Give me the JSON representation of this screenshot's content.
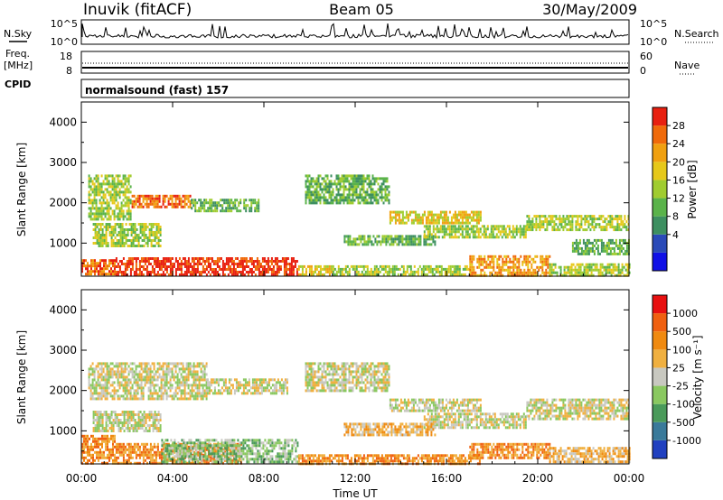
{
  "header": {
    "station": "Inuvik (fitACF)",
    "beam": "Beam 05",
    "date": "30/May/2009"
  },
  "strips": {
    "nsky_label": "N.Sky",
    "nsky_ticks": [
      "10^5",
      "10^0"
    ],
    "nsearch_label": "N.Search",
    "nsearch_ticks": [
      "10^5",
      "10^0"
    ],
    "freq_label": "Freq.",
    "freq_unit": "[MHz]",
    "freq_ticks": [
      "18",
      "8"
    ],
    "nave_label": "Nave",
    "nave_ticks": [
      "60",
      "0"
    ],
    "cpid_label": "CPID",
    "cpid_value": "normalsound (fast) 157"
  },
  "chart_data": [
    {
      "type": "heatmap",
      "panel": "power",
      "xlabel": "Time UT",
      "ylabel": "Slant Range [km]",
      "xlim": [
        0,
        24
      ],
      "x_ticks": [
        "00:00",
        "04:00",
        "08:00",
        "12:00",
        "16:00",
        "20:00",
        "00:00"
      ],
      "ylim": [
        180,
        4500
      ],
      "y_ticks": [
        1000,
        2000,
        3000,
        4000
      ],
      "colorbar": {
        "label": "Power [dB]",
        "ticks": [
          "4",
          "8",
          "12",
          "16",
          "20",
          "24",
          "28"
        ],
        "colors": [
          "#1010e6",
          "#2a4ab8",
          "#3d8f60",
          "#5ab34a",
          "#a0cc30",
          "#e6c81a",
          "#f0a010",
          "#f06a0a",
          "#e82010"
        ]
      },
      "echo_bands": [
        {
          "t0": 0.0,
          "t1": 1.5,
          "r0": 200,
          "r1": 600,
          "level": 7
        },
        {
          "t0": 1.5,
          "t1": 9.5,
          "r0": 200,
          "r1": 650,
          "level": 8
        },
        {
          "t0": 9.5,
          "t1": 11.0,
          "r0": 200,
          "r1": 450,
          "level": 5
        },
        {
          "t0": 11.0,
          "t1": 17.0,
          "r0": 200,
          "r1": 450,
          "level": 4
        },
        {
          "t0": 17.0,
          "t1": 20.5,
          "r0": 200,
          "r1": 700,
          "level": 6
        },
        {
          "t0": 20.5,
          "t1": 24.0,
          "r0": 200,
          "r1": 500,
          "level": 4
        },
        {
          "t0": 0.3,
          "t1": 2.2,
          "r0": 1600,
          "r1": 2700,
          "level": 4
        },
        {
          "t0": 2.2,
          "t1": 4.8,
          "r0": 1900,
          "r1": 2200,
          "level": 7
        },
        {
          "t0": 0.5,
          "t1": 3.5,
          "r0": 900,
          "r1": 1500,
          "level": 4
        },
        {
          "t0": 4.8,
          "t1": 7.8,
          "r0": 1800,
          "r1": 2100,
          "level": 3
        },
        {
          "t0": 9.8,
          "t1": 13.5,
          "r0": 2000,
          "r1": 2700,
          "level": 3
        },
        {
          "t0": 13.5,
          "t1": 17.5,
          "r0": 1500,
          "r1": 1800,
          "level": 5
        },
        {
          "t0": 11.5,
          "t1": 15.5,
          "r0": 950,
          "r1": 1200,
          "level": 3
        },
        {
          "t0": 15.0,
          "t1": 19.5,
          "r0": 1150,
          "r1": 1450,
          "level": 4
        },
        {
          "t0": 19.5,
          "t1": 24.0,
          "r0": 1300,
          "r1": 1700,
          "level": 4
        },
        {
          "t0": 21.5,
          "t1": 24.0,
          "r0": 700,
          "r1": 1100,
          "level": 3
        }
      ]
    },
    {
      "type": "heatmap",
      "panel": "velocity",
      "xlabel": "Time UT",
      "ylabel": "Slant Range [km]",
      "xlim": [
        0,
        24
      ],
      "x_ticks": [
        "00:00",
        "04:00",
        "08:00",
        "12:00",
        "16:00",
        "20:00",
        "00:00"
      ],
      "ylim": [
        180,
        4500
      ],
      "y_ticks": [
        1000,
        2000,
        3000,
        4000
      ],
      "colorbar": {
        "label": "Velocity [m s⁻¹]",
        "ticks": [
          "1000",
          "500",
          "100",
          "25",
          "-25",
          "-100",
          "-500",
          "-1000"
        ],
        "colors": [
          "#2040c0",
          "#3a7a9a",
          "#4a9a5a",
          "#8ac860",
          "#c8c8c0",
          "#f0b040",
          "#f08a10",
          "#f06010",
          "#e81010"
        ]
      },
      "echo_bands": [
        {
          "t0": 0.0,
          "t1": 1.5,
          "r0": 200,
          "r1": 900,
          "level": 6
        },
        {
          "t0": 1.5,
          "t1": 7.0,
          "r0": 200,
          "r1": 700,
          "level": 6
        },
        {
          "t0": 3.5,
          "t1": 9.5,
          "r0": 200,
          "r1": 800,
          "level": 3
        },
        {
          "t0": 9.5,
          "t1": 17.5,
          "r0": 200,
          "r1": 420,
          "level": 6
        },
        {
          "t0": 17.0,
          "t1": 20.5,
          "r0": 300,
          "r1": 700,
          "level": 6
        },
        {
          "t0": 20.5,
          "t1": 24.0,
          "r0": 200,
          "r1": 600,
          "level": 5
        },
        {
          "t0": 0.3,
          "t1": 5.5,
          "r0": 1800,
          "r1": 2700,
          "level": 4
        },
        {
          "t0": 5.5,
          "t1": 9.0,
          "r0": 1900,
          "r1": 2300,
          "level": 4
        },
        {
          "t0": 9.8,
          "t1": 13.5,
          "r0": 2000,
          "r1": 2700,
          "level": 4
        },
        {
          "t0": 13.5,
          "t1": 17.5,
          "r0": 1500,
          "r1": 1800,
          "level": 4
        },
        {
          "t0": 15.0,
          "t1": 19.5,
          "r0": 1100,
          "r1": 1450,
          "level": 4
        },
        {
          "t0": 19.5,
          "t1": 24.0,
          "r0": 1300,
          "r1": 1800,
          "level": 4
        },
        {
          "t0": 0.5,
          "t1": 3.5,
          "r0": 1000,
          "r1": 1500,
          "level": 4
        },
        {
          "t0": 11.5,
          "t1": 15.5,
          "r0": 900,
          "r1": 1200,
          "level": 5
        }
      ]
    }
  ]
}
